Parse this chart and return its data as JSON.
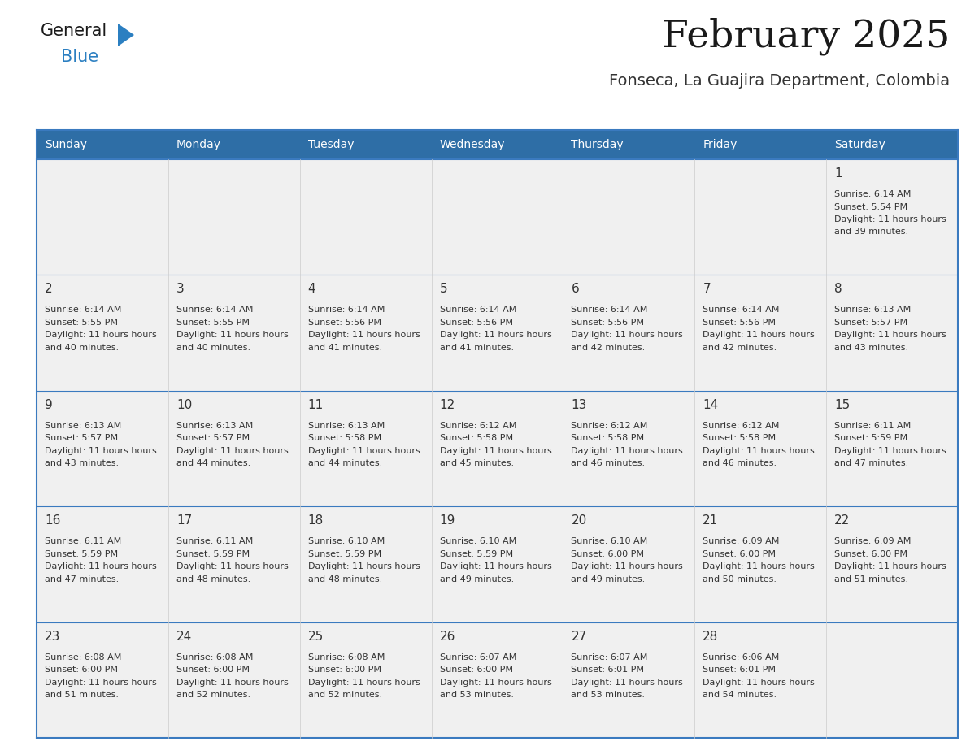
{
  "title": "February 2025",
  "subtitle": "Fonseca, La Guajira Department, Colombia",
  "header_bg": "#2E6EA6",
  "header_text": "#FFFFFF",
  "cell_bg": "#F0F0F0",
  "border_color": "#3A7ABF",
  "day_number_color": "#333333",
  "text_color": "#333333",
  "days_of_week": [
    "Sunday",
    "Monday",
    "Tuesday",
    "Wednesday",
    "Thursday",
    "Friday",
    "Saturday"
  ],
  "logo_color1": "#1A1A1A",
  "logo_color2": "#2B7FC1",
  "cal_data": [
    {
      "day": 1,
      "col": 6,
      "row": 0,
      "sunrise": "6:14 AM",
      "sunset": "5:54 PM",
      "daylight": "11 hours and 39 minutes."
    },
    {
      "day": 2,
      "col": 0,
      "row": 1,
      "sunrise": "6:14 AM",
      "sunset": "5:55 PM",
      "daylight": "11 hours and 40 minutes."
    },
    {
      "day": 3,
      "col": 1,
      "row": 1,
      "sunrise": "6:14 AM",
      "sunset": "5:55 PM",
      "daylight": "11 hours and 40 minutes."
    },
    {
      "day": 4,
      "col": 2,
      "row": 1,
      "sunrise": "6:14 AM",
      "sunset": "5:56 PM",
      "daylight": "11 hours and 41 minutes."
    },
    {
      "day": 5,
      "col": 3,
      "row": 1,
      "sunrise": "6:14 AM",
      "sunset": "5:56 PM",
      "daylight": "11 hours and 41 minutes."
    },
    {
      "day": 6,
      "col": 4,
      "row": 1,
      "sunrise": "6:14 AM",
      "sunset": "5:56 PM",
      "daylight": "11 hours and 42 minutes."
    },
    {
      "day": 7,
      "col": 5,
      "row": 1,
      "sunrise": "6:14 AM",
      "sunset": "5:56 PM",
      "daylight": "11 hours and 42 minutes."
    },
    {
      "day": 8,
      "col": 6,
      "row": 1,
      "sunrise": "6:13 AM",
      "sunset": "5:57 PM",
      "daylight": "11 hours and 43 minutes."
    },
    {
      "day": 9,
      "col": 0,
      "row": 2,
      "sunrise": "6:13 AM",
      "sunset": "5:57 PM",
      "daylight": "11 hours and 43 minutes."
    },
    {
      "day": 10,
      "col": 1,
      "row": 2,
      "sunrise": "6:13 AM",
      "sunset": "5:57 PM",
      "daylight": "11 hours and 44 minutes."
    },
    {
      "day": 11,
      "col": 2,
      "row": 2,
      "sunrise": "6:13 AM",
      "sunset": "5:58 PM",
      "daylight": "11 hours and 44 minutes."
    },
    {
      "day": 12,
      "col": 3,
      "row": 2,
      "sunrise": "6:12 AM",
      "sunset": "5:58 PM",
      "daylight": "11 hours and 45 minutes."
    },
    {
      "day": 13,
      "col": 4,
      "row": 2,
      "sunrise": "6:12 AM",
      "sunset": "5:58 PM",
      "daylight": "11 hours and 46 minutes."
    },
    {
      "day": 14,
      "col": 5,
      "row": 2,
      "sunrise": "6:12 AM",
      "sunset": "5:58 PM",
      "daylight": "11 hours and 46 minutes."
    },
    {
      "day": 15,
      "col": 6,
      "row": 2,
      "sunrise": "6:11 AM",
      "sunset": "5:59 PM",
      "daylight": "11 hours and 47 minutes."
    },
    {
      "day": 16,
      "col": 0,
      "row": 3,
      "sunrise": "6:11 AM",
      "sunset": "5:59 PM",
      "daylight": "11 hours and 47 minutes."
    },
    {
      "day": 17,
      "col": 1,
      "row": 3,
      "sunrise": "6:11 AM",
      "sunset": "5:59 PM",
      "daylight": "11 hours and 48 minutes."
    },
    {
      "day": 18,
      "col": 2,
      "row": 3,
      "sunrise": "6:10 AM",
      "sunset": "5:59 PM",
      "daylight": "11 hours and 48 minutes."
    },
    {
      "day": 19,
      "col": 3,
      "row": 3,
      "sunrise": "6:10 AM",
      "sunset": "5:59 PM",
      "daylight": "11 hours and 49 minutes."
    },
    {
      "day": 20,
      "col": 4,
      "row": 3,
      "sunrise": "6:10 AM",
      "sunset": "6:00 PM",
      "daylight": "11 hours and 49 minutes."
    },
    {
      "day": 21,
      "col": 5,
      "row": 3,
      "sunrise": "6:09 AM",
      "sunset": "6:00 PM",
      "daylight": "11 hours and 50 minutes."
    },
    {
      "day": 22,
      "col": 6,
      "row": 3,
      "sunrise": "6:09 AM",
      "sunset": "6:00 PM",
      "daylight": "11 hours and 51 minutes."
    },
    {
      "day": 23,
      "col": 0,
      "row": 4,
      "sunrise": "6:08 AM",
      "sunset": "6:00 PM",
      "daylight": "11 hours and 51 minutes."
    },
    {
      "day": 24,
      "col": 1,
      "row": 4,
      "sunrise": "6:08 AM",
      "sunset": "6:00 PM",
      "daylight": "11 hours and 52 minutes."
    },
    {
      "day": 25,
      "col": 2,
      "row": 4,
      "sunrise": "6:08 AM",
      "sunset": "6:00 PM",
      "daylight": "11 hours and 52 minutes."
    },
    {
      "day": 26,
      "col": 3,
      "row": 4,
      "sunrise": "6:07 AM",
      "sunset": "6:00 PM",
      "daylight": "11 hours and 53 minutes."
    },
    {
      "day": 27,
      "col": 4,
      "row": 4,
      "sunrise": "6:07 AM",
      "sunset": "6:01 PM",
      "daylight": "11 hours and 53 minutes."
    },
    {
      "day": 28,
      "col": 5,
      "row": 4,
      "sunrise": "6:06 AM",
      "sunset": "6:01 PM",
      "daylight": "11 hours and 54 minutes."
    }
  ]
}
